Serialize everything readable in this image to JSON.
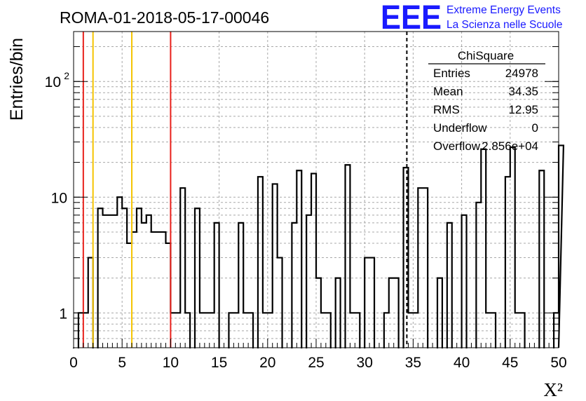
{
  "header": {
    "run_title": "ROMA-01-2018-05-17-00046",
    "logo_text": "EEE",
    "logo_line1": "Extreme Energy Events",
    "logo_line2": "La Scienza nelle Scuole"
  },
  "stats_box": {
    "title": "ChiSquare",
    "rows": [
      {
        "label": "Entries",
        "value": "24978"
      },
      {
        "label": "Mean",
        "value": "34.35"
      },
      {
        "label": "RMS",
        "value": "12.95"
      },
      {
        "label": "Underflow",
        "value": "0"
      },
      {
        "label": "Overflow",
        "value": "2.856e+04"
      }
    ]
  },
  "colors": {
    "histogram": "#000000",
    "red_line": "#e8201a",
    "yellow_line": "#f5c400",
    "grid": "#a8a8a8",
    "logo": "#1a1aff"
  },
  "chart_data": {
    "type": "histogram",
    "title": "ROMA-01-2018-05-17-00046",
    "xlabel": "X²",
    "ylabel": "Entries/bin",
    "xlim": [
      0,
      50
    ],
    "ylim": [
      0.5,
      270
    ],
    "yscale": "log",
    "grid": true,
    "bin_width": 0.5,
    "x_ticks": [
      "0",
      "5",
      "10",
      "15",
      "20",
      "25",
      "30",
      "35",
      "40",
      "45",
      "50"
    ],
    "y_ticks": [
      {
        "value": 1,
        "label": "1"
      },
      {
        "value": 10,
        "label": "10"
      },
      {
        "value": 100,
        "label": "10",
        "exponent": "2"
      }
    ],
    "values": [
      0,
      1,
      1,
      3,
      0,
      8,
      7,
      7,
      7,
      10,
      8,
      4,
      5,
      8,
      6,
      7,
      5,
      5,
      5,
      4,
      1,
      1,
      12,
      1,
      0,
      8,
      1,
      1,
      1,
      6,
      0,
      0,
      1,
      1,
      6,
      1,
      1,
      0,
      15,
      1,
      1,
      13,
      3,
      0,
      0,
      6,
      17,
      0,
      7,
      16,
      2,
      1,
      1,
      0,
      2,
      0,
      19,
      1,
      1,
      0,
      3,
      3,
      0,
      0,
      1,
      2,
      2,
      0,
      18,
      1,
      1,
      12,
      12,
      0,
      0,
      2,
      0,
      6,
      0,
      0,
      7,
      0,
      0,
      9,
      26,
      1,
      1,
      0,
      0,
      15,
      27,
      1,
      1,
      0,
      0,
      0,
      17,
      0,
      0,
      1,
      28
    ],
    "vertical_lines": [
      {
        "x": 1,
        "color": "red",
        "style": "solid"
      },
      {
        "x": 2,
        "color": "yellow",
        "style": "solid"
      },
      {
        "x": 6,
        "color": "yellow",
        "style": "solid"
      },
      {
        "x": 10,
        "color": "red",
        "style": "solid"
      },
      {
        "x": 34.35,
        "color": "black",
        "style": "dashed"
      }
    ]
  }
}
